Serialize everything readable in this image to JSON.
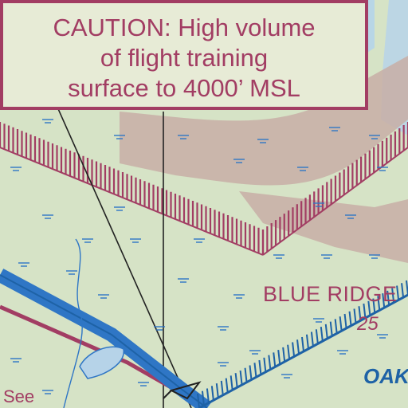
{
  "chart": {
    "caution_lines": [
      "CAUTION: High volume",
      "of flight training",
      "surface to 4000’ MSL"
    ],
    "labels": {
      "blue_ridge": "BLUE RIDGE",
      "altitude": "25",
      "oak": "OAK",
      "see": "See"
    }
  },
  "colors": {
    "background": "#d6e3c6",
    "magenta": "#a23d63",
    "blue": "#1e62a6",
    "road_brown": "#b59a96",
    "light_blue": "#a9cde4"
  }
}
